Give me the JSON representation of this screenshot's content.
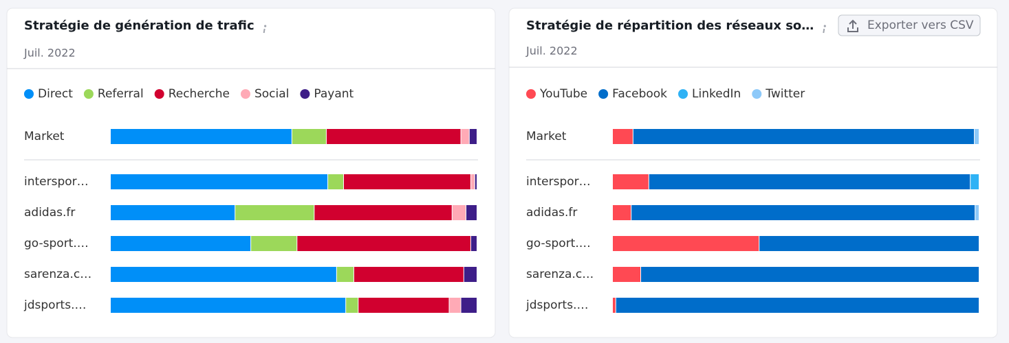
{
  "chart_data": [
    {
      "type": "bar",
      "stacked": true,
      "title": "Stratégie de génération de trafic",
      "subtitle": "Juil. 2022",
      "categories": [
        "Market",
        "interspor…",
        "adidas.fr",
        "go-sport.…",
        "sarenza.c…",
        "jdsports.…"
      ],
      "xlim": [
        0,
        100
      ],
      "series": [
        {
          "name": "Direct",
          "color": "#008ff8",
          "values": [
            49.5,
            59.3,
            34.0,
            38.3,
            61.7,
            64.2
          ]
        },
        {
          "name": "Referral",
          "color": "#9cd85a",
          "values": [
            9.4,
            4.3,
            21.6,
            12.6,
            4.7,
            3.4
          ]
        },
        {
          "name": "Recherche",
          "color": "#d1002f",
          "values": [
            36.7,
            34.7,
            37.6,
            47.4,
            30.0,
            24.8
          ]
        },
        {
          "name": "Social",
          "color": "#ffaab6",
          "values": [
            2.3,
            1.1,
            3.8,
            0,
            0,
            3.2
          ]
        },
        {
          "name": "Payant",
          "color": "#3e1e88",
          "values": [
            2.1,
            0.6,
            3.0,
            1.7,
            3.6,
            4.4
          ]
        }
      ]
    },
    {
      "type": "bar",
      "stacked": true,
      "title": "Stratégie de répartition des réseaux so…",
      "subtitle": "Juil. 2022",
      "button": "Exporter vers CSV",
      "categories": [
        "Market",
        "interspor…",
        "adidas.fr",
        "go-sport.…",
        "sarenza.c…",
        "jdsports.…"
      ],
      "xlim": [
        0,
        100
      ],
      "series": [
        {
          "name": "YouTube",
          "color": "#ff4953",
          "values": [
            5.6,
            9.9,
            5.1,
            40.0,
            7.7,
            0.9
          ]
        },
        {
          "name": "Facebook",
          "color": "#006dca",
          "values": [
            93.1,
            87.7,
            93.8,
            60.0,
            92.3,
            99.1
          ]
        },
        {
          "name": "LinkedIn",
          "color": "#2fb2f5",
          "values": [
            0,
            2.4,
            0,
            0,
            0,
            0
          ]
        },
        {
          "name": "Twitter",
          "color": "#8dc9f9",
          "values": [
            1.3,
            0,
            1.1,
            0,
            0,
            0
          ]
        }
      ]
    }
  ]
}
